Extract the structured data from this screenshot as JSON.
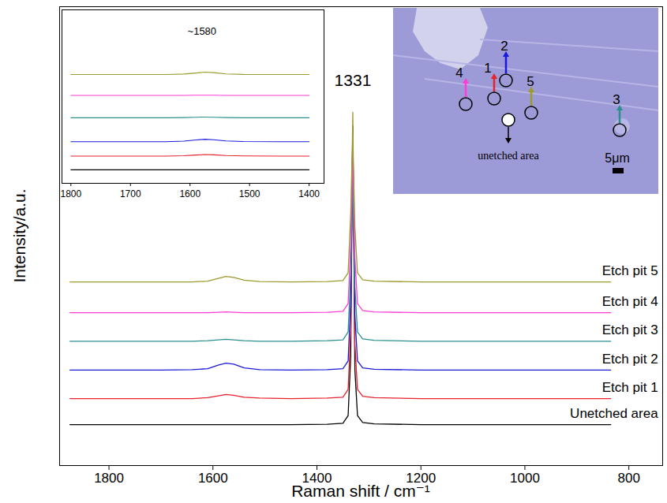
{
  "chart_data": [
    {
      "type": "line",
      "x_label": "Raman shift / cm⁻¹",
      "y_label": "Intensity/a.u.",
      "x": [
        1875,
        1700,
        1640,
        1610,
        1590,
        1575,
        1560,
        1540,
        1510,
        1450,
        1380,
        1350,
        1340,
        1335,
        1332,
        1331,
        1330,
        1327,
        1322,
        1312,
        1290,
        1200,
        1100,
        1000,
        900,
        835
      ],
      "series": [
        {
          "name": "Unetched area",
          "color": "#000000",
          "values": [
            8.9,
            8.9,
            8.9,
            8.9,
            8.9,
            8.9,
            8.9,
            8.9,
            8.9,
            8.9,
            9.0,
            9.2,
            10.9,
            23.9,
            66,
            74,
            63,
            20.9,
            10.9,
            9.4,
            9.1,
            8.9,
            8.9,
            8.9,
            8.9,
            8.9
          ]
        },
        {
          "name": "Etch pit 1",
          "color": "#e8212b",
          "values": [
            14.6,
            14.6,
            14.6,
            14.8,
            15.2,
            15.5,
            15.3,
            14.9,
            14.7,
            14.6,
            14.7,
            14.9,
            16.6,
            29.6,
            63,
            71,
            60,
            26.6,
            16.6,
            15.1,
            14.8,
            14.6,
            14.6,
            14.6,
            14.6,
            14.6
          ]
        },
        {
          "name": "Etch pit 2",
          "color": "#1a1adc",
          "values": [
            20.8,
            20.8,
            20.9,
            21.1,
            21.9,
            22.3,
            22.1,
            21.3,
            20.9,
            20.8,
            20.9,
            21.1,
            22.8,
            35.8,
            62,
            70,
            59,
            32.8,
            22.8,
            21.3,
            21.0,
            20.8,
            20.8,
            20.8,
            20.8,
            20.8
          ]
        },
        {
          "name": "Etch pit 3",
          "color": "#2a8f8f",
          "values": [
            27.1,
            27.1,
            27.1,
            27.2,
            27.4,
            27.5,
            27.4,
            27.2,
            27.1,
            27.1,
            27.2,
            27.4,
            29.1,
            42.1,
            58,
            66,
            55,
            39.1,
            29.1,
            27.6,
            27.3,
            27.1,
            27.1,
            27.1,
            27.1,
            27.1
          ]
        },
        {
          "name": "Etch pit 4",
          "color": "#ff3cd8",
          "values": [
            33.3,
            33.3,
            33.3,
            33.3,
            33.4,
            33.5,
            33.4,
            33.3,
            33.3,
            33.3,
            33.4,
            33.6,
            35.3,
            48.3,
            64,
            72,
            61,
            45.3,
            35.3,
            33.8,
            33.5,
            33.3,
            33.3,
            33.3,
            33.3,
            33.3
          ]
        },
        {
          "name": "Etch pit 5",
          "color": "#9c9a2e",
          "values": [
            40.0,
            40.0,
            40.0,
            40.2,
            40.8,
            41.2,
            41.0,
            40.4,
            40.1,
            40.0,
            40.1,
            40.3,
            42.0,
            55.0,
            69,
            77,
            66,
            52.0,
            42.0,
            40.5,
            40.2,
            40.0,
            40.0,
            40.0,
            40.0,
            40.0
          ]
        }
      ],
      "xlim": [
        1895,
        735
      ],
      "xticks": [
        1800,
        1600,
        1400,
        1200,
        1000,
        800
      ],
      "ylim": [
        0,
        100
      ],
      "tick_labels": "x",
      "annotations": [
        {
          "text": "1331",
          "x": 1331
        }
      ]
    },
    {
      "type": "line",
      "x": [
        1800,
        1700,
        1640,
        1610,
        1590,
        1575,
        1560,
        1540,
        1510,
        1450,
        1400
      ],
      "series": [
        {
          "color": "#000000",
          "values": [
            7.8,
            7.8,
            7.8,
            7.8,
            7.8,
            7.8,
            7.8,
            7.8,
            7.8,
            7.8,
            7.8
          ]
        },
        {
          "color": "#e8212b",
          "values": [
            15.7,
            15.7,
            15.7,
            15.9,
            16.3,
            16.6,
            16.4,
            16.0,
            15.8,
            15.7,
            15.7
          ]
        },
        {
          "color": "#1a1adc",
          "values": [
            24.0,
            24.0,
            24.0,
            24.3,
            25.0,
            25.4,
            25.1,
            24.4,
            24.1,
            24.0,
            24.0
          ]
        },
        {
          "color": "#2a8f8f",
          "values": [
            37.8,
            37.8,
            37.8,
            37.9,
            38.1,
            38.2,
            38.1,
            37.9,
            37.8,
            37.8,
            37.8
          ]
        },
        {
          "color": "#ff3cd8",
          "values": [
            50.7,
            50.7,
            50.7,
            50.7,
            50.8,
            50.8,
            50.8,
            50.7,
            50.7,
            50.7,
            50.7
          ]
        },
        {
          "color": "#9c9a2e",
          "values": [
            62.7,
            62.7,
            62.7,
            63.0,
            63.6,
            64.1,
            63.8,
            63.1,
            62.8,
            62.7,
            62.7
          ]
        }
      ],
      "xlim": [
        1815,
        1375
      ],
      "xticks": [
        1800,
        1700,
        1600,
        1500,
        1400
      ],
      "ylim": [
        0,
        100
      ],
      "tick_labels": "x",
      "annotations": [
        {
          "text": "~1580",
          "x": 1580
        }
      ]
    }
  ],
  "micrograph": {
    "points": [
      {
        "label": "1",
        "color": "#e8212b"
      },
      {
        "label": "2",
        "color": "#1a1adc"
      },
      {
        "label": "3",
        "color": "#2a8f8f"
      },
      {
        "label": "4",
        "color": "#ff3cd8"
      },
      {
        "label": "5",
        "color": "#9c9a2e"
      }
    ],
    "unetched_label": "unetched area",
    "scale_bar": "5μm"
  }
}
